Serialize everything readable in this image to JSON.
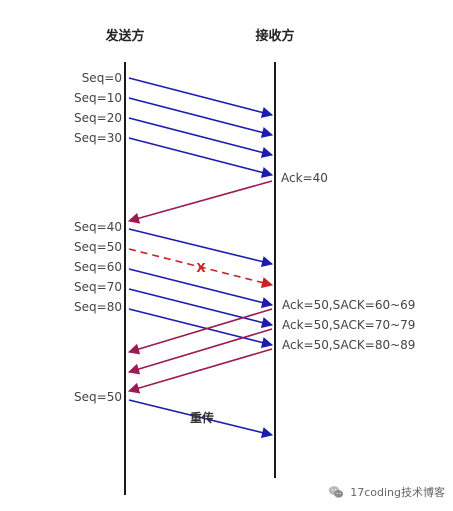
{
  "headers": {
    "sender": "发送方",
    "receiver": "接收方"
  },
  "colors": {
    "data": "#1c1cae",
    "ack": "#9b1b54",
    "loss": "#cc2222",
    "timeline": "#1a1a1a"
  },
  "phase1": {
    "seq_labels": [
      "Seq=0",
      "Seq=10",
      "Seq=20",
      "Seq=30"
    ],
    "ack_label": "Ack=40"
  },
  "phase2": {
    "seq_labels": [
      "Seq=40",
      "Seq=50",
      "Seq=60",
      "Seq=70",
      "Seq=80"
    ],
    "loss_mark": "X",
    "ack_labels": [
      "Ack=50,SACK=60~69",
      "Ack=50,SACK=70~79",
      "Ack=50,SACK=80~89"
    ]
  },
  "retransmit": {
    "seq_label": "Seq=50",
    "label": "重传"
  },
  "watermark": {
    "text": "17coding技术博客",
    "icon": "wechat-icon"
  }
}
